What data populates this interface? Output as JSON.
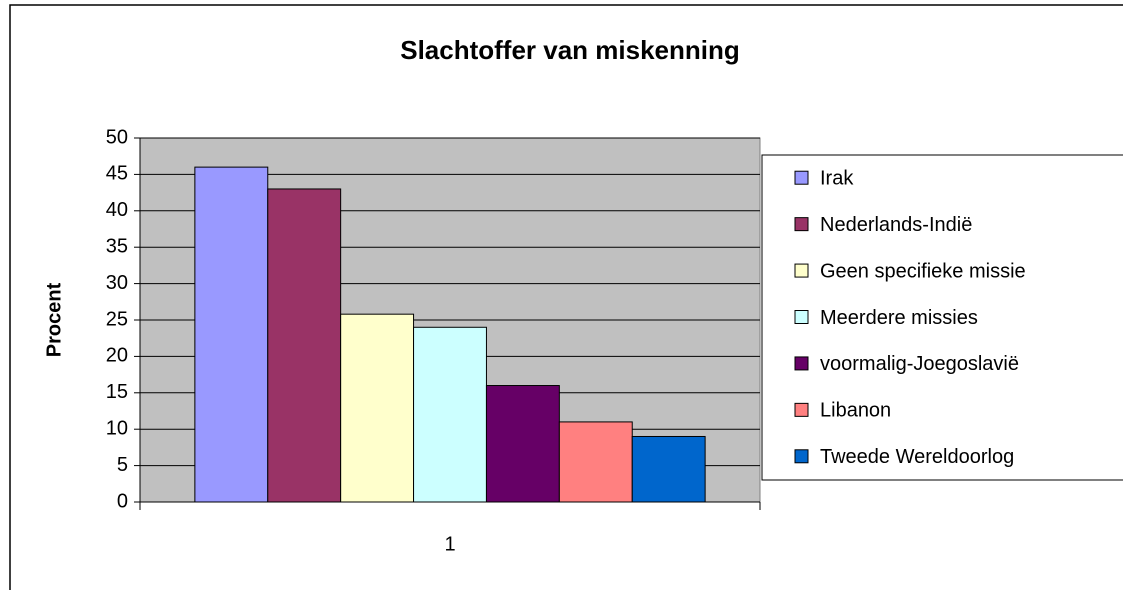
{
  "chart_data": {
    "type": "bar",
    "title": "Slachtoffer van miskenning",
    "y_label": "Procent",
    "categories": [
      "1"
    ],
    "series": [
      {
        "name": "Irak",
        "color": "#9999FF",
        "values": [
          46
        ]
      },
      {
        "name": "Nederlands-Indië",
        "color": "#993366",
        "values": [
          43
        ]
      },
      {
        "name": "Geen specifieke missie",
        "color": "#FFFFCC",
        "values": [
          25.8
        ]
      },
      {
        "name": "Meerdere missies",
        "color": "#CCFFFF",
        "values": [
          24
        ]
      },
      {
        "name": "voormalig-Joegoslavië",
        "color": "#660066",
        "values": [
          16
        ]
      },
      {
        "name": "Libanon",
        "color": "#FF8080",
        "values": [
          11
        ]
      },
      {
        "name": "Tweede Wereldoorlog",
        "color": "#0066CC",
        "values": [
          9
        ]
      }
    ],
    "ylim": [
      0,
      50
    ],
    "yticks": [
      0,
      5,
      10,
      15,
      20,
      25,
      30,
      35,
      40,
      45,
      50
    ],
    "grid": true,
    "legend": "right"
  }
}
